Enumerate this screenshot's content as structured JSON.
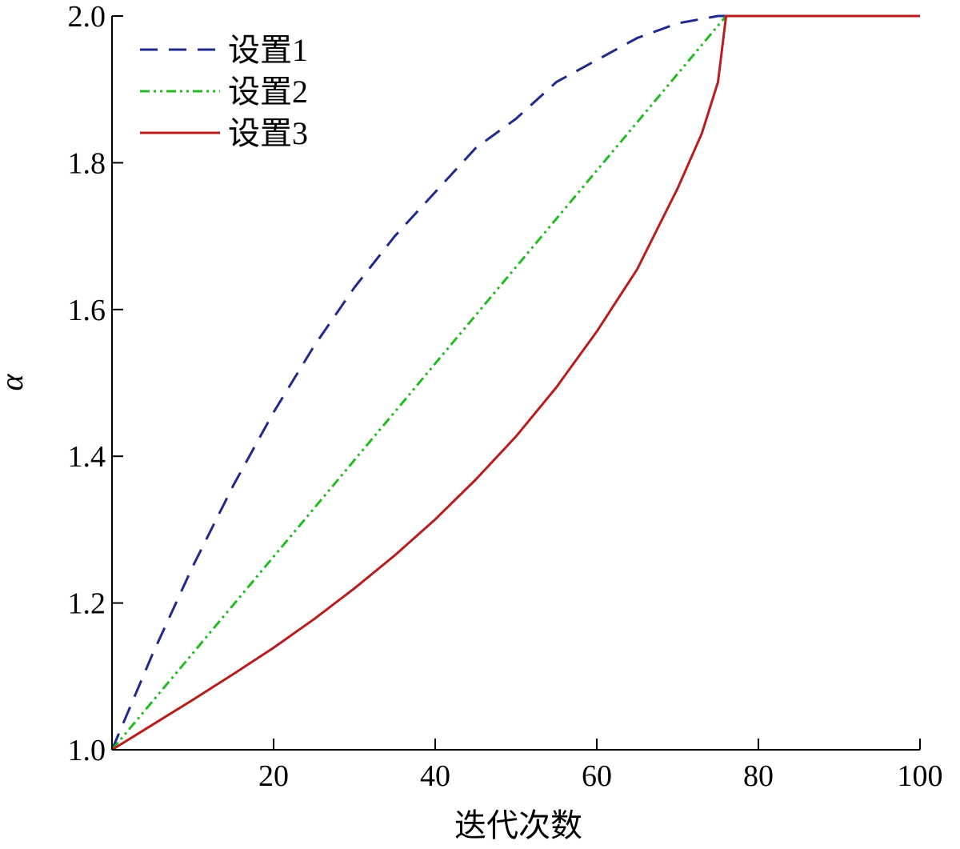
{
  "chart_data": {
    "type": "line",
    "xlabel": "迭代次数",
    "ylabel": "α",
    "xlim": [
      0,
      100
    ],
    "ylim": [
      1.0,
      2.0
    ],
    "xticks": [
      20,
      40,
      60,
      80,
      100
    ],
    "xtick_labels": [
      "20",
      "40",
      "60",
      "80",
      "100"
    ],
    "yticks": [
      1.0,
      1.2,
      1.4,
      1.6,
      1.8,
      2.0
    ],
    "ytick_labels": [
      "1.0",
      "1.2",
      "1.4",
      "1.6",
      "1.8",
      "2.0"
    ],
    "grid": false,
    "legend_position": "top-left",
    "series": [
      {
        "name": "设置1",
        "color": "#1f2a8c",
        "style": "dashed",
        "x": [
          0,
          5,
          10,
          15,
          20,
          25,
          30,
          35,
          40,
          45,
          50,
          55,
          60,
          65,
          70,
          75,
          76,
          80,
          85,
          90,
          95,
          100
        ],
        "y": [
          1.0,
          1.13,
          1.25,
          1.36,
          1.46,
          1.55,
          1.63,
          1.7,
          1.76,
          1.82,
          1.86,
          1.91,
          1.94,
          1.97,
          1.99,
          2.0,
          2.0,
          2.0,
          2.0,
          2.0,
          2.0,
          2.0
        ]
      },
      {
        "name": "设置2",
        "color": "#22bb22",
        "style": "dash-dot-dot",
        "x": [
          0,
          76,
          80,
          85,
          90,
          95,
          100
        ],
        "y": [
          1.0,
          2.0,
          2.0,
          2.0,
          2.0,
          2.0,
          2.0
        ]
      },
      {
        "name": "设置3",
        "color": "#b81c1c",
        "style": "solid",
        "x": [
          0,
          5,
          10,
          15,
          20,
          25,
          30,
          35,
          40,
          45,
          50,
          55,
          60,
          65,
          70,
          73,
          75,
          76,
          80,
          85,
          90,
          95,
          100
        ],
        "y": [
          1.0,
          1.034,
          1.068,
          1.103,
          1.139,
          1.178,
          1.22,
          1.265,
          1.314,
          1.368,
          1.427,
          1.494,
          1.57,
          1.655,
          1.765,
          1.84,
          1.91,
          2.0,
          2.0,
          2.0,
          2.0,
          2.0,
          2.0
        ]
      }
    ]
  }
}
